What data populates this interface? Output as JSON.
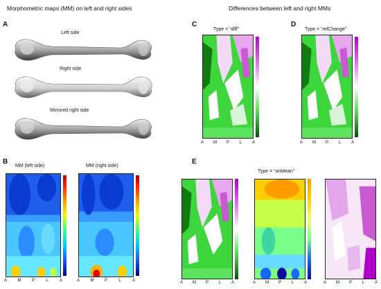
{
  "left_header": "Morphometric maps (MM) on left and right sides",
  "right_header": "Differences between left and right MMs",
  "panels": {
    "a": "A",
    "b": "B",
    "c": "C",
    "d": "D",
    "e": "E"
  },
  "bones": {
    "left": "Left side",
    "right": "Right side",
    "mirrored": "Mirrored right side"
  },
  "mm_titles": {
    "left": "MM (left side)",
    "right": "MM (right side)"
  },
  "type_labels": {
    "c": "Type = “diff”",
    "d": "Type = “relChange”",
    "e": "Type = “onMean”"
  },
  "axis_ticks": [
    "A",
    "M",
    "P",
    "L",
    "A"
  ],
  "colors": {
    "diverge_high": "#b000c8",
    "diverge_mid": "#ffffff",
    "diverge_low": "#0c4f0c",
    "jet_high": "#b00000",
    "jet_low": "#00007a"
  }
}
